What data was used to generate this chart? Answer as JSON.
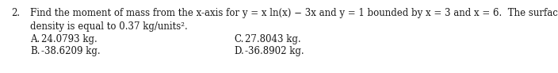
{
  "background_color": "#ffffff",
  "number": "2.",
  "question_line1": "Find the moment of mass from the x-axis for y = x ln(x) − 3x and y = 1 bounded by x = 3 and x = 6.  The surface",
  "question_line2": "density is equal to 0.37 kg/units².",
  "choice_A_label": "A.",
  "choice_A_val": "24.0793 kg.",
  "choice_B_label": "B.",
  "choice_B_val": "-38.6209 kg.",
  "choice_C_label": "C.",
  "choice_C_val": "27.8043 kg.",
  "choice_D_label": "D.",
  "choice_D_val": "-36.8902 kg.",
  "fontsize": 8.5,
  "text_color": "#1a1a1a",
  "fig_width": 7.04,
  "fig_height": 0.92,
  "dpi": 100
}
